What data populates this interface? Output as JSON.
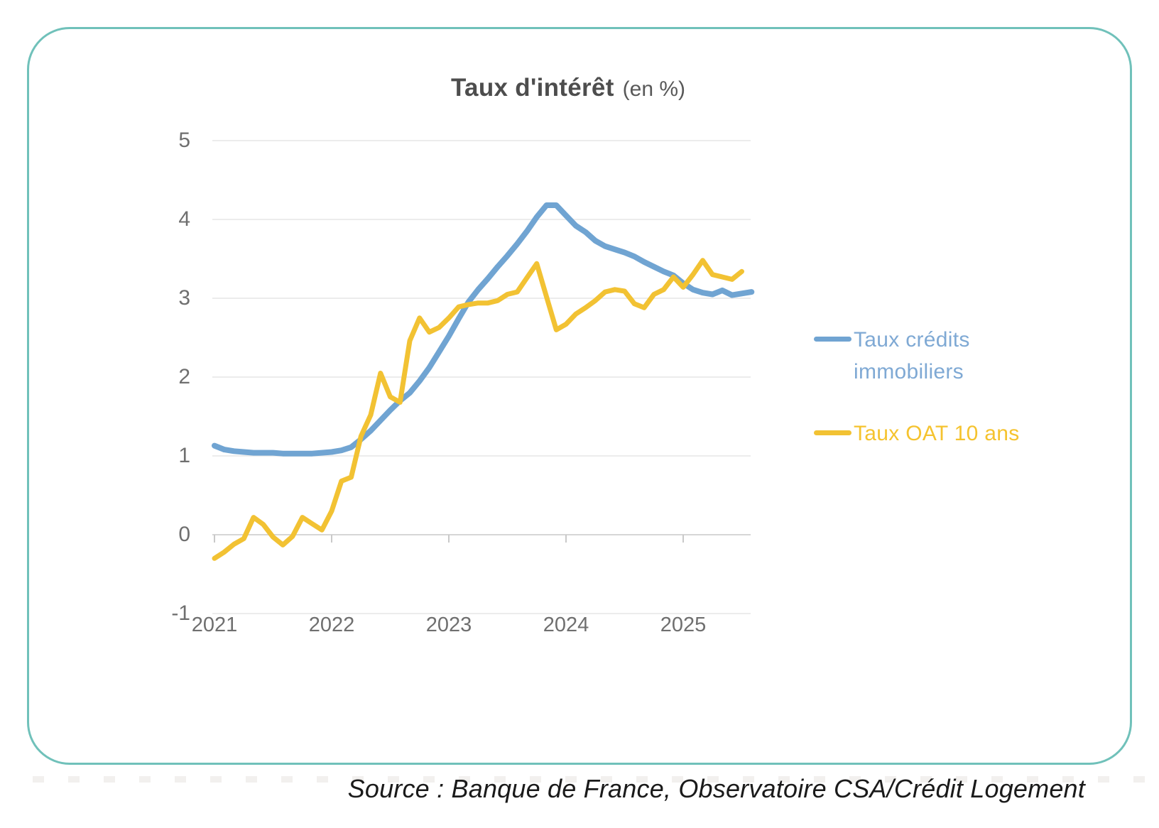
{
  "card": {
    "border_color": "#70C1BA"
  },
  "chart_data": {
    "type": "line",
    "title": "Taux d'intérêt",
    "title_suffix": "(en %)",
    "x_start": "2021-01",
    "x_interval": "monthly",
    "x_tick_labels": [
      "2021",
      "2022",
      "2023",
      "2024",
      "2025"
    ],
    "y_ticks": [
      5,
      4,
      3,
      2,
      1,
      0,
      -1
    ],
    "ylim": [
      -1,
      5
    ],
    "grid": "horizontal",
    "grid_color": "#ECECEC",
    "axis_color": "#D6D6D6",
    "tick_color": "#C9C9C9",
    "legend_position": "right",
    "series": [
      {
        "name": "Taux crédits immobiliers",
        "color": "#70A4D2",
        "legend_text_color": "#7FA9D4",
        "line_width": 8,
        "values": [
          1.13,
          1.08,
          1.06,
          1.05,
          1.04,
          1.04,
          1.04,
          1.03,
          1.03,
          1.03,
          1.03,
          1.04,
          1.05,
          1.07,
          1.11,
          1.21,
          1.32,
          1.45,
          1.58,
          1.7,
          1.8,
          1.95,
          2.12,
          2.32,
          2.52,
          2.74,
          2.95,
          3.11,
          3.25,
          3.4,
          3.54,
          3.69,
          3.85,
          4.03,
          4.18,
          4.18,
          4.05,
          3.92,
          3.84,
          3.73,
          3.66,
          3.62,
          3.58,
          3.53,
          3.46,
          3.4,
          3.34,
          3.29,
          3.19,
          3.11,
          3.07,
          3.05,
          3.1,
          3.04,
          3.06,
          3.08
        ]
      },
      {
        "name": "Taux OAT 10 ans",
        "color": "#F2C233",
        "legend_text_color": "#F5C32F",
        "line_width": 7,
        "values": [
          -0.3,
          -0.22,
          -0.12,
          -0.05,
          0.22,
          0.13,
          -0.03,
          -0.13,
          -0.02,
          0.22,
          0.14,
          0.06,
          0.3,
          0.68,
          0.73,
          1.25,
          1.52,
          2.05,
          1.75,
          1.68,
          2.46,
          2.75,
          2.57,
          2.63,
          2.75,
          2.89,
          2.92,
          2.94,
          2.94,
          2.97,
          3.05,
          3.08,
          3.26,
          3.44,
          3.02,
          2.6,
          2.67,
          2.8,
          2.88,
          2.97,
          3.08,
          3.11,
          3.09,
          2.93,
          2.88,
          3.05,
          3.11,
          3.27,
          3.14,
          3.3,
          3.48,
          3.3,
          3.27,
          3.24,
          3.34
        ]
      }
    ]
  },
  "legend": {
    "items": [
      {
        "lines": [
          "Taux crédits",
          "immobiliers"
        ]
      },
      {
        "lines": [
          "Taux OAT 10 ans"
        ]
      }
    ]
  },
  "footer": {
    "source": "Source : Banque de France, Observatoire CSA/Crédit Logement"
  }
}
